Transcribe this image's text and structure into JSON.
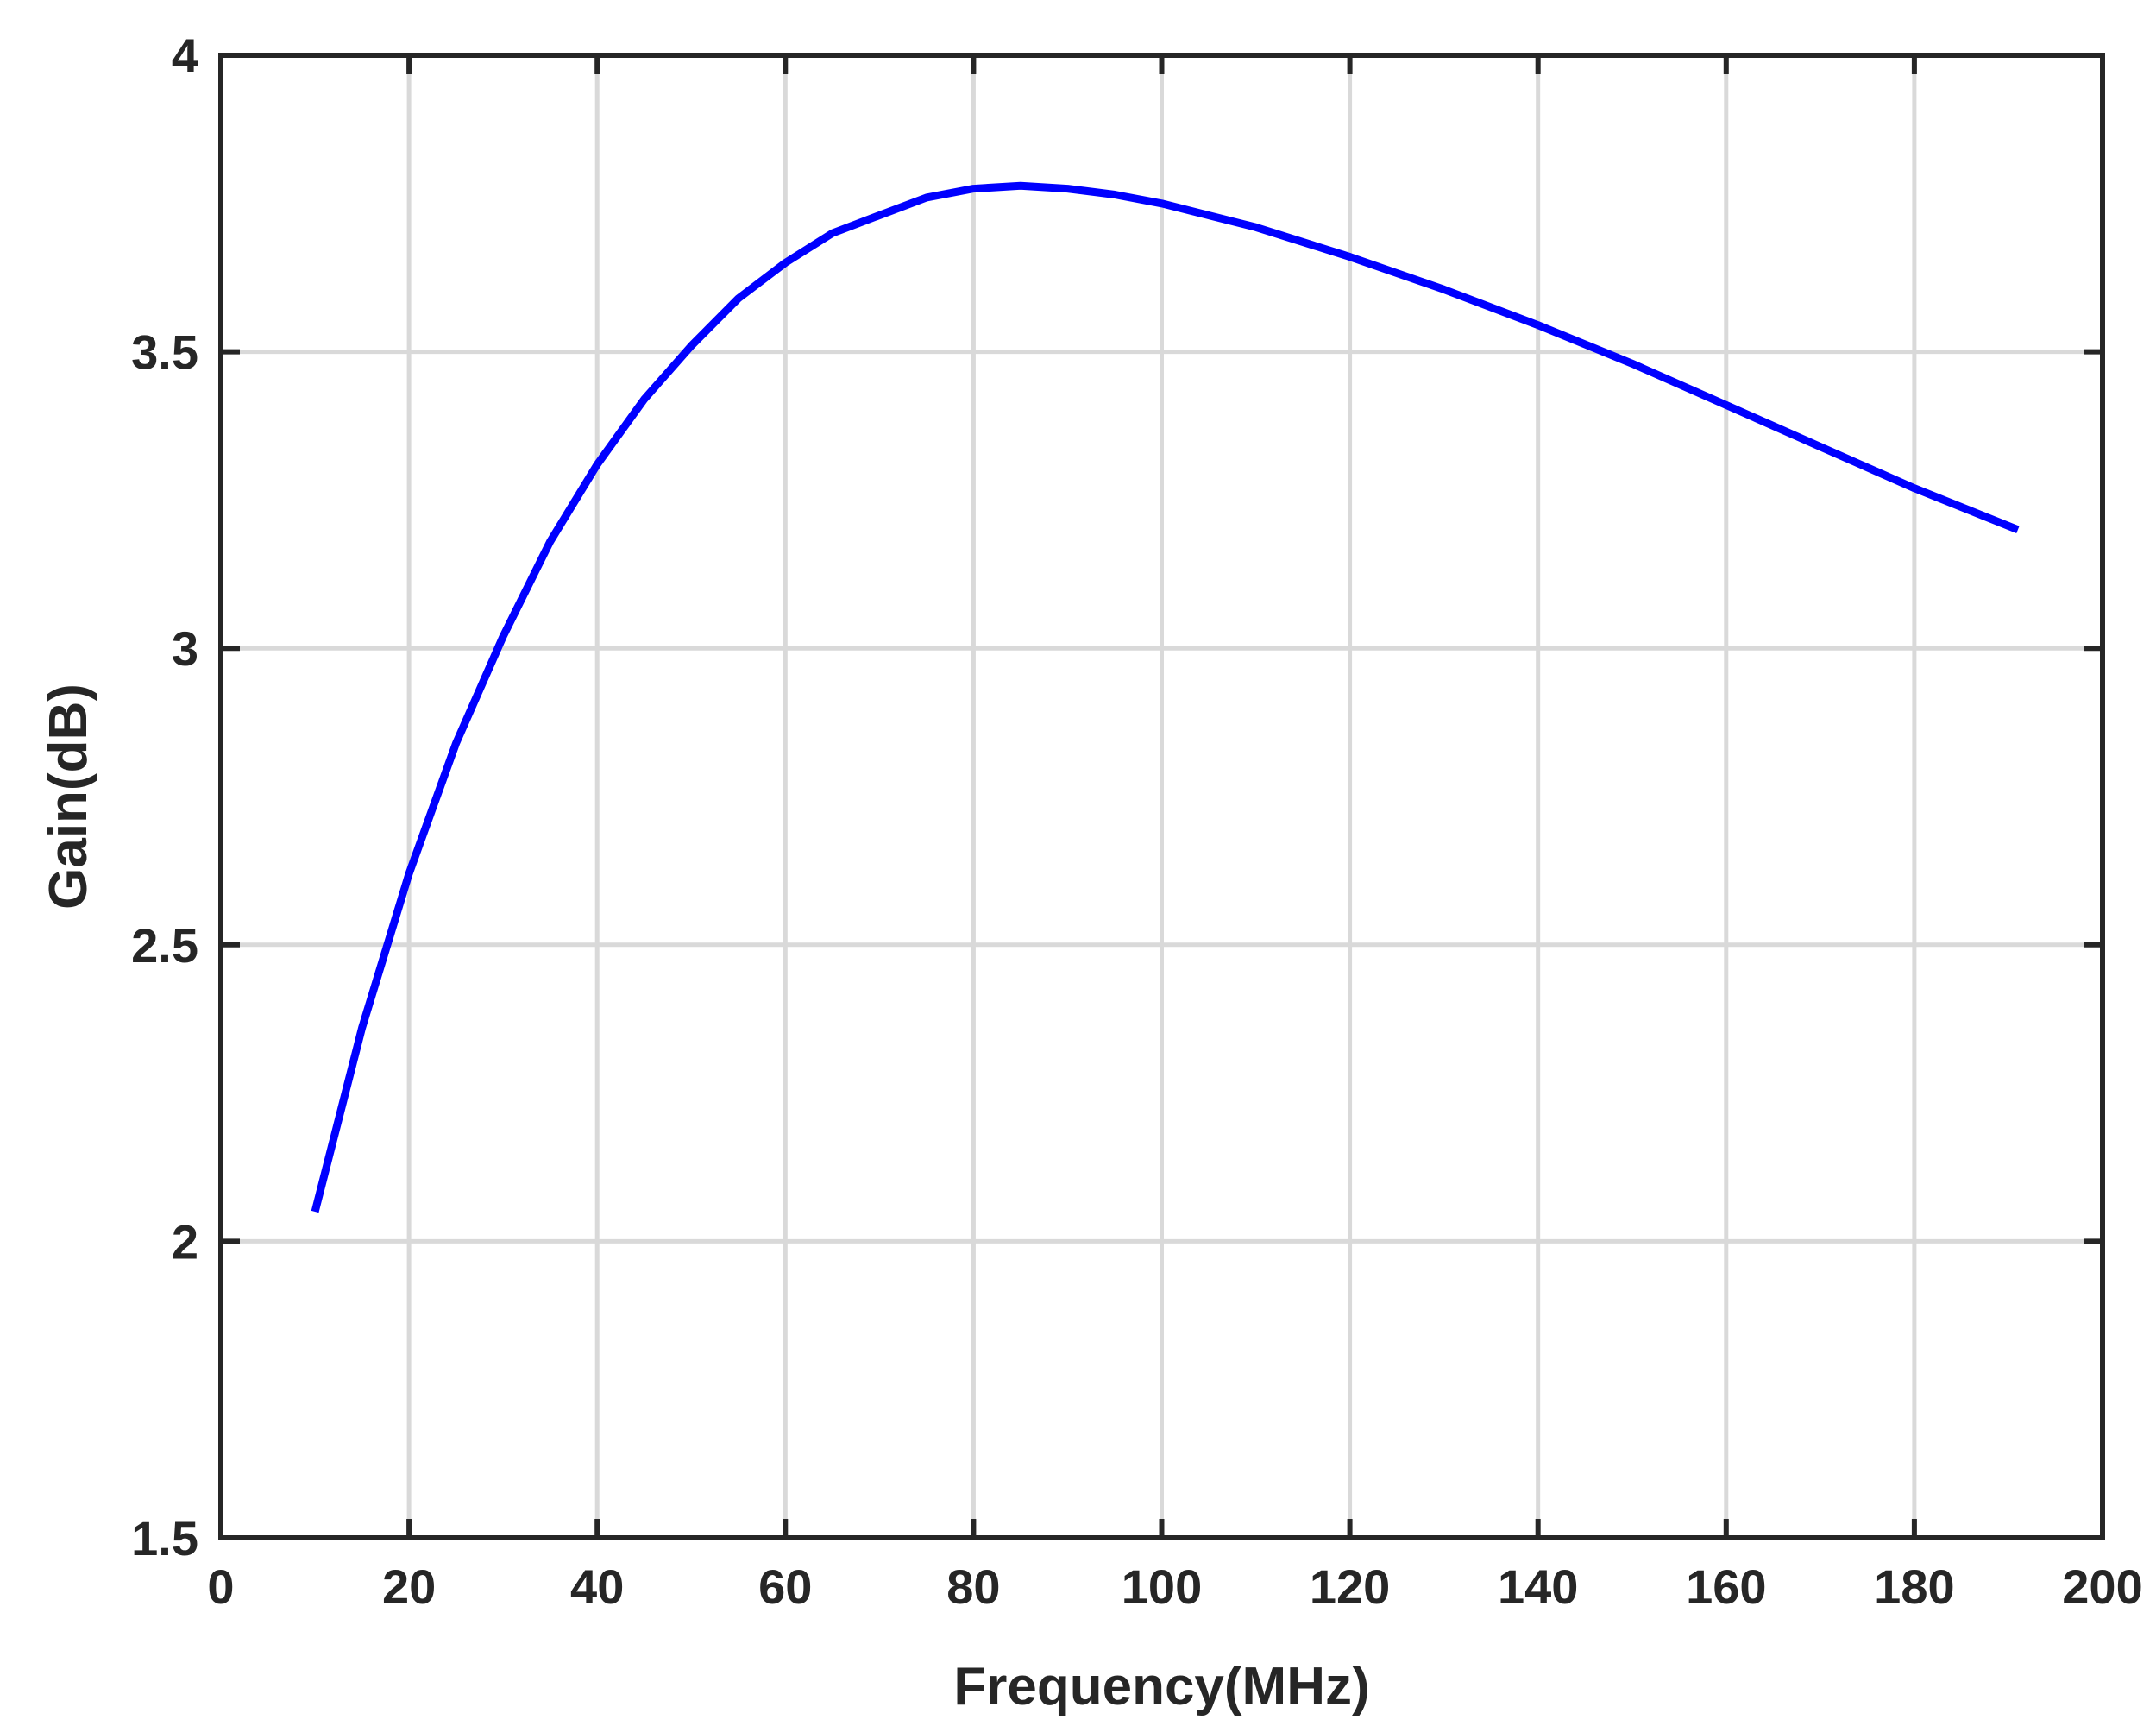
{
  "chart_data": {
    "type": "line",
    "title": "",
    "xlabel": "Frequency(MHz)",
    "ylabel": "Gain(dB)",
    "xlim": [
      0,
      200
    ],
    "ylim": [
      1.5,
      4
    ],
    "xticks": [
      0,
      20,
      40,
      60,
      80,
      100,
      120,
      140,
      160,
      180,
      200
    ],
    "yticks": [
      1.5,
      2,
      2.5,
      3,
      3.5,
      4
    ],
    "xtick_labels": [
      "0",
      "20",
      "40",
      "60",
      "80",
      "100",
      "120",
      "140",
      "160",
      "180",
      "200"
    ],
    "ytick_labels": [
      "1.5",
      "2",
      "2.5",
      "3",
      "3.5",
      "4"
    ],
    "grid": true,
    "series": [
      {
        "color": "#0000ff",
        "x": [
          10,
          15,
          20,
          25,
          30,
          35,
          40,
          45,
          50,
          55,
          60,
          65,
          70,
          75,
          80,
          85,
          90,
          95,
          100,
          110,
          120,
          130,
          140,
          150,
          160,
          170,
          180,
          191
        ],
        "y": [
          2.05,
          2.36,
          2.62,
          2.84,
          3.02,
          3.18,
          3.31,
          3.42,
          3.51,
          3.59,
          3.65,
          3.7,
          3.73,
          3.76,
          3.775,
          3.78,
          3.775,
          3.765,
          3.75,
          3.71,
          3.66,
          3.605,
          3.545,
          3.48,
          3.41,
          3.34,
          3.27,
          3.2
        ]
      }
    ]
  }
}
